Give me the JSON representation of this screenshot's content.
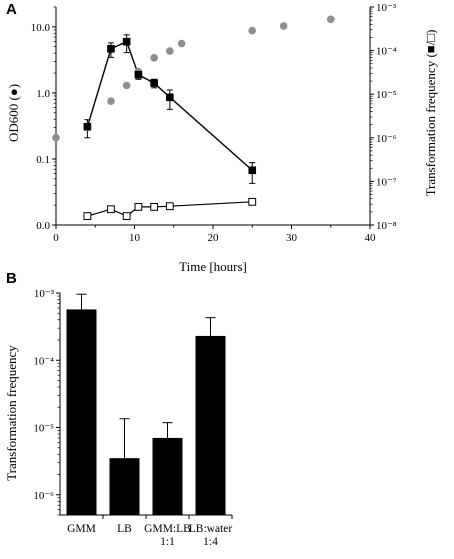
{
  "chart_data": [
    {
      "panel": "A",
      "type": "scatter",
      "xlabel": "Time [hours]",
      "ylabel_left": "OD600 (●)",
      "ylabel_right": "Transformation frequency (■/□)",
      "xlim": [
        0,
        40
      ],
      "xticks": [
        "0",
        "10",
        "20",
        "30",
        "40"
      ],
      "left_axis": {
        "scale": "log",
        "ylim": [
          0.01,
          20
        ],
        "ticks": [
          "10.0",
          "1.0",
          "0.1",
          "0.0"
        ],
        "tick_values": [
          10,
          1,
          0.1,
          0.01
        ]
      },
      "right_axis": {
        "scale": "log",
        "ylim": [
          1e-08,
          0.001
        ],
        "ticks": [
          "10⁻³",
          "10⁻⁴",
          "10⁻⁵",
          "10⁻⁶",
          "10⁻⁷",
          "10⁻⁸"
        ],
        "tick_values": [
          0.001,
          0.0001,
          1e-05,
          1e-06,
          1e-07,
          1e-08
        ]
      },
      "series": [
        {
          "axis": "left",
          "style": "grey-circles",
          "x": [
            0,
            4,
            7,
            9,
            10.5,
            12.5,
            14.5,
            16,
            25,
            29,
            35
          ],
          "y": [
            0.21,
            0.3,
            0.75,
            1.3,
            2.1,
            3.4,
            4.3,
            5.6,
            8.8,
            10.3,
            13.0
          ]
        },
        {
          "axis": "right",
          "style": "filled-squares-line",
          "x": [
            4,
            7,
            9,
            10.5,
            12.5,
            14.5,
            25
          ],
          "y": [
            1.8e-06,
            0.00011,
            0.00016,
            2.8e-05,
            1.8e-05,
            8.5e-06,
            1.8e-07
          ],
          "err": [
            8e-07,
            4e-05,
            7e-05,
            6e-06,
            4e-06,
            4e-06,
            9e-08
          ]
        },
        {
          "axis": "right",
          "style": "open-squares-line",
          "x": [
            4,
            7,
            9,
            10.5,
            12.5,
            14.5,
            25
          ],
          "y": [
            1.6e-08,
            2.3e-08,
            1.6e-08,
            2.6e-08,
            2.6e-08,
            2.7e-08,
            3.4e-08
          ]
        }
      ]
    },
    {
      "panel": "B",
      "type": "bar",
      "categories": [
        [
          "GMM"
        ],
        [
          "LB"
        ],
        [
          "GMM:LB",
          "1:1"
        ],
        [
          "LB:water",
          "1:4"
        ]
      ],
      "values": [
        0.00057,
        3.5e-06,
        7e-06,
        0.00023
      ],
      "err_upper": [
        0.00096,
        1.35e-05,
        1.18e-05,
        0.00043
      ],
      "ylabel": "Transformation frequency",
      "scale": "log",
      "ylim": [
        5e-07,
        0.001
      ],
      "yticks": [
        "10⁻³",
        "10⁻⁴",
        "10⁻⁵",
        "10⁻⁶"
      ],
      "ytick_values": [
        0.001,
        0.0001,
        1e-05,
        1e-06
      ]
    }
  ],
  "panel_a": {
    "letter": "A",
    "xlabel": "Time [hours]",
    "ylabel_left": "OD600 (●)",
    "ylabel_right": "Transformation frequency (■/□)"
  },
  "panel_b": {
    "letter": "B",
    "ylabel": "Transformation frequency"
  },
  "colors": {
    "grey_circle": "#8f8f8f",
    "ink": "#000000"
  }
}
